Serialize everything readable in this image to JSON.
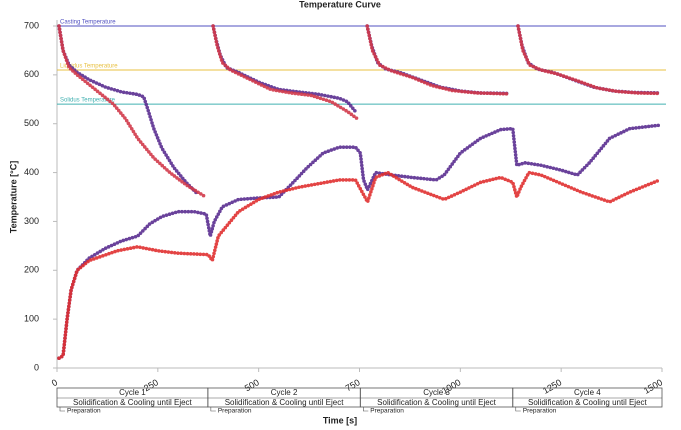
{
  "chart_data": {
    "type": "line",
    "title": "Temperature Curve",
    "x_label": "Time [s]",
    "y_label": "Temperature [°C]",
    "xlim": [
      0,
      1500
    ],
    "ylim": [
      0,
      700
    ],
    "xticks": [
      0,
      250,
      500,
      750,
      1000,
      1250,
      1500
    ],
    "yticks": [
      0,
      100,
      200,
      300,
      400,
      500,
      600,
      700
    ],
    "reference_lines": [
      {
        "label": "Casting Temperature",
        "value": 700,
        "color": "#5050c0"
      },
      {
        "label": "Liquidus Temperature",
        "value": 610,
        "color": "#e8c040"
      },
      {
        "label": "Solidus Temperature",
        "value": 540,
        "color": "#40b0b0"
      }
    ],
    "series": [
      {
        "color": "#5a2d90",
        "x": [
          5,
          15,
          30,
          50,
          80,
          120,
          160,
          200,
          215,
          225,
          240,
          260,
          290,
          320,
          350,
          null,
          387,
          395,
          405,
          420,
          450,
          500,
          550,
          600,
          650,
          700,
          720,
          740,
          null,
          769,
          780,
          795,
          815,
          850,
          900,
          950,
          1000,
          1050,
          1120,
          null,
          1143,
          1153,
          1168,
          1190,
          1230,
          1280,
          1330,
          1380,
          1430,
          1495
        ],
        "values": [
          700,
          650,
          620,
          605,
          590,
          575,
          565,
          560,
          555,
          530,
          490,
          450,
          410,
          380,
          355,
          null,
          700,
          670,
          640,
          615,
          605,
          585,
          570,
          565,
          560,
          552,
          545,
          525,
          null,
          700,
          660,
          625,
          612,
          605,
          590,
          575,
          567,
          563,
          562,
          null,
          700,
          660,
          625,
          612,
          605,
          590,
          575,
          567,
          564,
          563
        ]
      },
      {
        "color": "#d23a4a",
        "x": [
          5,
          15,
          30,
          50,
          80,
          110,
          140,
          170,
          200,
          240,
          280,
          320,
          365,
          null,
          387,
          397,
          410,
          430,
          480,
          530,
          580,
          630,
          680,
          720,
          745,
          null,
          769,
          782,
          800,
          830,
          880,
          930,
          980,
          1040,
          1120,
          null,
          1143,
          1155,
          1172,
          1200,
          1240,
          1290,
          1340,
          1390,
          1440,
          1495
        ],
        "values": [
          700,
          650,
          615,
          600,
          580,
          560,
          540,
          510,
          470,
          430,
          400,
          375,
          352,
          null,
          700,
          660,
          625,
          610,
          590,
          570,
          563,
          558,
          545,
          525,
          510,
          null,
          700,
          650,
          620,
          608,
          595,
          578,
          568,
          563,
          561,
          null,
          700,
          650,
          620,
          610,
          602,
          588,
          573,
          566,
          563,
          562
        ]
      },
      {
        "color": "#5a2d90",
        "x": [
          5,
          15,
          25,
          35,
          50,
          80,
          120,
          160,
          200,
          230,
          260,
          300,
          340,
          370,
          380,
          390,
          410,
          450,
          500,
          550,
          580,
          620,
          660,
          700,
          740,
          752,
          760,
          770,
          790,
          830,
          880,
          940,
          960,
          1000,
          1050,
          1100,
          1130,
          1140,
          1160,
          1200,
          1250,
          1290,
          1320,
          1370,
          1420,
          1495
        ],
        "values": [
          20,
          25,
          100,
          160,
          200,
          225,
          245,
          260,
          270,
          295,
          310,
          320,
          320,
          315,
          270,
          300,
          330,
          345,
          348,
          350,
          375,
          410,
          440,
          452,
          452,
          440,
          385,
          365,
          400,
          395,
          390,
          385,
          395,
          440,
          470,
          488,
          490,
          415,
          420,
          415,
          405,
          395,
          420,
          470,
          490,
          497
        ]
      },
      {
        "color": "#e03030",
        "x": [
          5,
          15,
          25,
          35,
          50,
          80,
          150,
          200,
          250,
          300,
          375,
          385,
          400,
          450,
          500,
          550,
          600,
          700,
          740,
          760,
          770,
          790,
          820,
          880,
          960,
          1000,
          1050,
          1100,
          1130,
          1140,
          1150,
          1170,
          1200,
          1300,
          1370,
          1420,
          1495
        ],
        "values": [
          20,
          25,
          100,
          160,
          200,
          220,
          240,
          248,
          240,
          235,
          232,
          220,
          270,
          320,
          345,
          360,
          370,
          385,
          385,
          355,
          340,
          390,
          400,
          370,
          345,
          360,
          380,
          390,
          380,
          350,
          370,
          400,
          395,
          360,
          340,
          360,
          385
        ]
      }
    ],
    "cycles": [
      {
        "name": "Cycle 1",
        "phase": "Solidification & Cooling until Eject",
        "prep": "Preparation",
        "start": 0,
        "end": 374
      },
      {
        "name": "Cycle 2",
        "phase": "Solidification & Cooling until Eject",
        "prep": "Preparation",
        "start": 374,
        "end": 752
      },
      {
        "name": "Cycle 3",
        "phase": "Solidification & Cooling until Eject",
        "prep": "Preparation",
        "start": 752,
        "end": 1130
      },
      {
        "name": "Cycle 4",
        "phase": "Solidification & Cooling until Eject",
        "prep": "Preparation",
        "start": 1130,
        "end": 1500
      }
    ]
  }
}
